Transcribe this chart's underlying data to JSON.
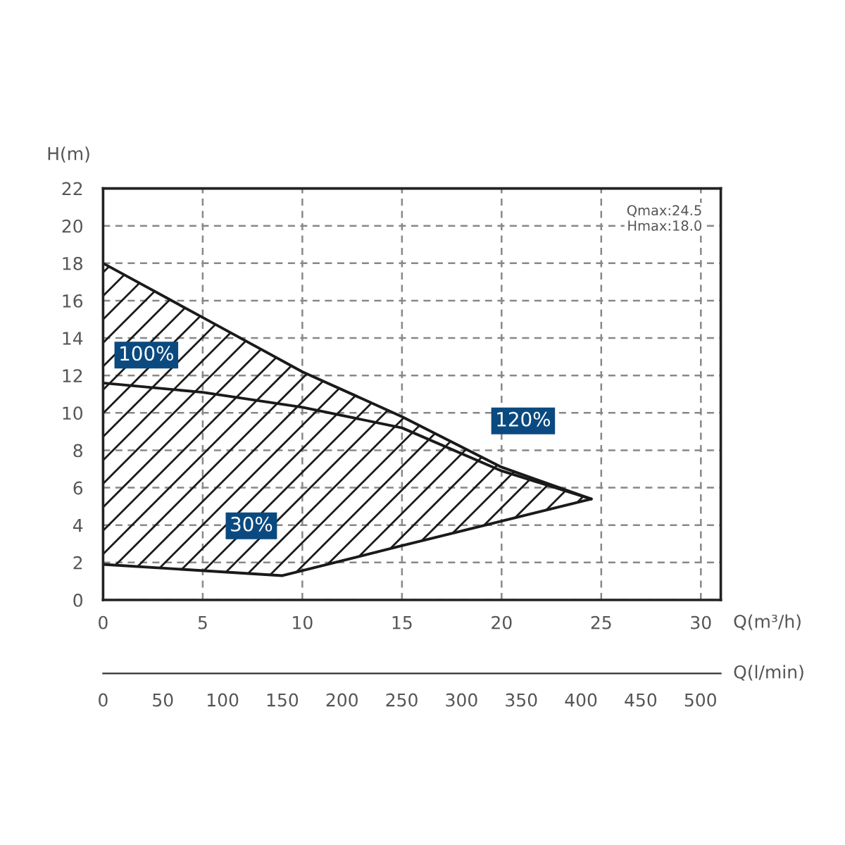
{
  "chart_data": {
    "type": "line",
    "xlabel": "Q(m³/h)",
    "ylabel": "H(m)",
    "x2label": "Q(l/min)",
    "xlim": [
      0,
      31
    ],
    "xticks": [
      0,
      5,
      10,
      15,
      20,
      25,
      30
    ],
    "ylim": [
      0,
      22
    ],
    "yticks": [
      0,
      2,
      4,
      6,
      8,
      10,
      12,
      14,
      16,
      18,
      20,
      22
    ],
    "x2lim": [
      0,
      517
    ],
    "x2ticks": [
      0,
      50,
      100,
      150,
      200,
      250,
      300,
      350,
      400,
      450,
      500
    ],
    "grid": true,
    "marker": "none",
    "line_style": "solid",
    "series": [
      {
        "type": "line",
        "color": "#1a1a1a",
        "x": [
          0,
          5,
          10,
          15,
          20,
          24.5
        ],
        "values": [
          18,
          15.1,
          12.2,
          9.8,
          7.1,
          5.4
        ]
      },
      {
        "type": "line",
        "color": "#1a1a1a",
        "x": [
          0,
          5,
          10,
          15,
          20,
          24.5
        ],
        "values": [
          11.6,
          11.1,
          10.3,
          9.2,
          6.9,
          5.4
        ]
      },
      {
        "type": "line",
        "color": "#1a1a1a",
        "x": [
          0,
          9,
          15,
          24.5
        ],
        "values": [
          1.9,
          1.3,
          2.9,
          5.4
        ]
      }
    ],
    "annotations": [
      "100%",
      "120%",
      "30%",
      "Qmax:24.5\nHmax:18.0"
    ]
  }
}
